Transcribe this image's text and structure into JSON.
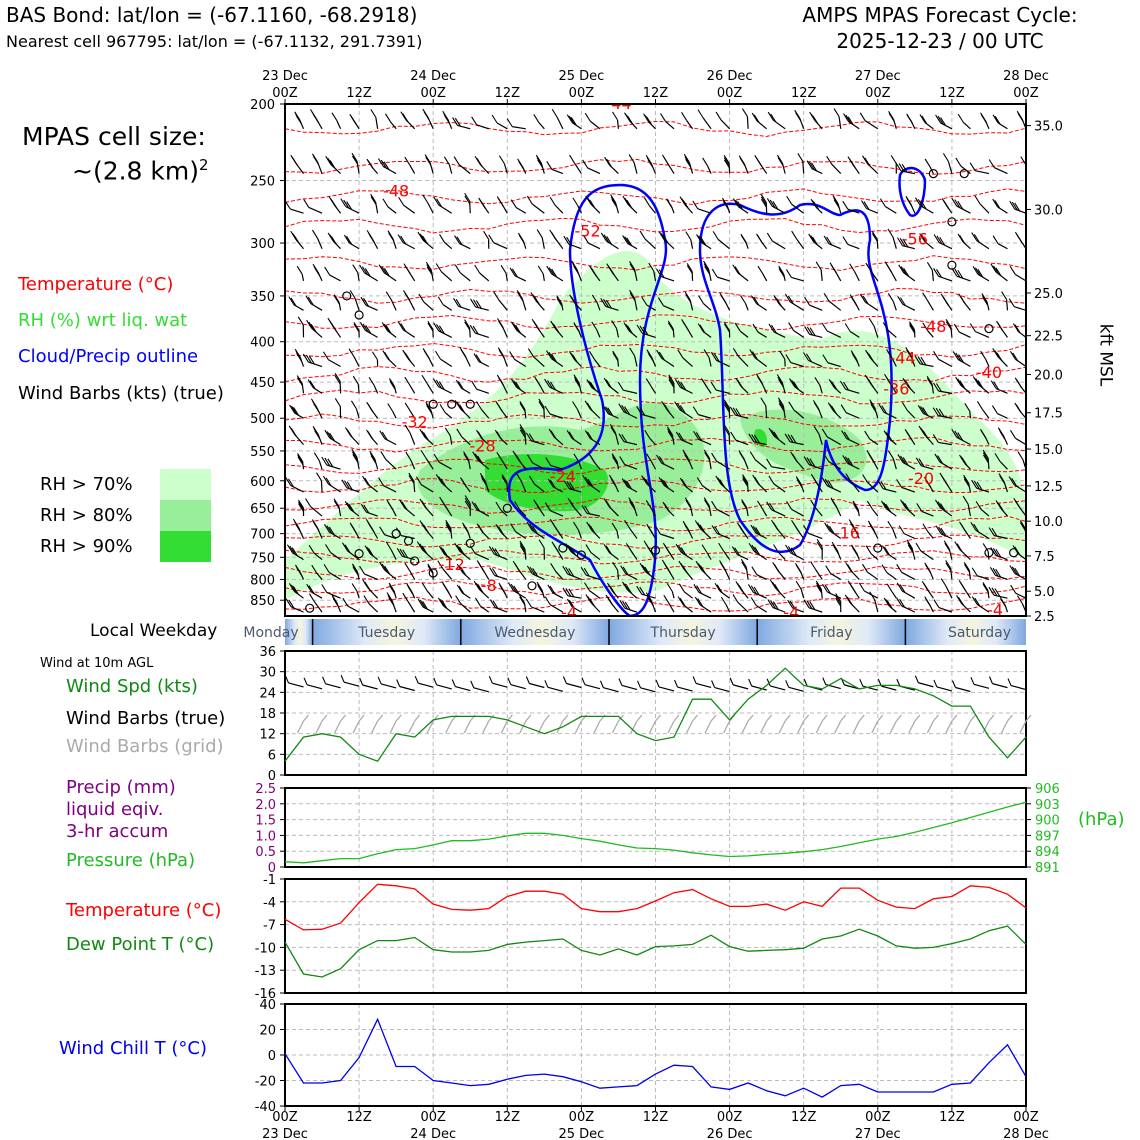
{
  "header": {
    "station_line": "BAS Bond: lat/lon = (-67.1160, -68.2918)",
    "cell_line": "Nearest cell 967795: lat/lon = (-67.1132, 291.7391)",
    "forecast_title": "AMPS MPAS Forecast Cycle:",
    "forecast_cycle": "2025-12-23 / 00 UTC"
  },
  "side": {
    "cell_size_label": "MPAS cell size:",
    "cell_size_value": "~(2.8 km)",
    "cell_size_exp": "2",
    "legend_temperature": "Temperature (°C)",
    "legend_rh": "RH (%) wrt liq. wat",
    "legend_cloud": "Cloud/Precip outline",
    "legend_barbs": "Wind Barbs (kts) (true)",
    "rh_70": "RH > 70%",
    "rh_80": "RH > 80%",
    "rh_90": "RH > 90%",
    "local_weekday_label": "Local Weekday",
    "wind10m_label": "Wind at 10m AGL",
    "wind_spd_label": "Wind Spd (kts)",
    "wind_barbs_true": "Wind Barbs (true)",
    "wind_barbs_grid": "Wind Barbs (grid)",
    "precip_line1": "Precip (mm)",
    "precip_line2": "liquid eqiv.",
    "precip_line3": "3-hr accum",
    "pressure_label": "Pressure (hPa)",
    "temp_label": "Temperature (°C)",
    "dew_label": "Dew Point T (°C)",
    "windchill_label": "Wind Chill T (°C)",
    "hpa_right": "(hPa)",
    "kft_label": "kft MSL"
  },
  "colors": {
    "temperature": "#ff0000",
    "rh": "#22dd22",
    "cloud": "#0000ff",
    "precip": "#800080",
    "pressure": "#22bb22",
    "dewpoint": "#118811",
    "windchill": "#0000ee",
    "rh70": "#ccffcc",
    "rh80": "#99ee99",
    "rh90": "#33dd33",
    "grid_barbs": "#aaaaaa"
  },
  "chart_data": {
    "type": "meteogram",
    "time_axis": {
      "hours": [
        0,
        12,
        24,
        36,
        48,
        60,
        72,
        84,
        96,
        108,
        120
      ],
      "top_labels": [
        "23 Dec\n00Z",
        "12Z",
        "24 Dec\n00Z",
        "12Z",
        "25 Dec\n00Z",
        "12Z",
        "26 Dec\n00Z",
        "12Z",
        "27 Dec\n00Z",
        "12Z",
        "28 Dec\n00Z"
      ],
      "bottom_labels": [
        "00Z\n23 Dec",
        "12Z",
        "00Z\n24 Dec",
        "12Z",
        "00Z\n25 Dec",
        "12Z",
        "00Z\n26 Dec",
        "12Z",
        "00Z\n27 Dec",
        "12Z",
        "00Z\n28 Dec"
      ]
    },
    "weekdays": [
      "Monday",
      "Tuesday",
      "Wednesday",
      "Thursday",
      "Friday",
      "Saturday"
    ],
    "upper_air": {
      "pressure_ticks": [
        200,
        250,
        300,
        350,
        400,
        450,
        500,
        550,
        600,
        650,
        700,
        750,
        800,
        850
      ],
      "ylim_hpa": [
        890,
        200
      ],
      "kft_ticks": [
        {
          "label": "35.0",
          "p": 213
        },
        {
          "label": "30.0",
          "p": 272
        },
        {
          "label": "25.0",
          "p": 347
        },
        {
          "label": "22.5",
          "p": 393
        },
        {
          "label": "20.0",
          "p": 440
        },
        {
          "label": "17.5",
          "p": 492
        },
        {
          "label": "15.0",
          "p": 547
        },
        {
          "label": "12.5",
          "p": 609
        },
        {
          "label": "10.0",
          "p": 675
        },
        {
          "label": "7.5",
          "p": 747
        },
        {
          "label": "5.0",
          "p": 828
        },
        {
          "label": "2.5",
          "p": 890
        }
      ],
      "temperature_labels": [
        {
          "t": "-44",
          "h": 54,
          "p": 200
        },
        {
          "t": "-48",
          "h": 18,
          "p": 258
        },
        {
          "t": "-52",
          "h": 49,
          "p": 290
        },
        {
          "t": "-56",
          "h": 102,
          "p": 297
        },
        {
          "t": "-48",
          "h": 105,
          "p": 383
        },
        {
          "t": "-44",
          "h": 100,
          "p": 420
        },
        {
          "t": "-40",
          "h": 114,
          "p": 438
        },
        {
          "t": "-36",
          "h": 99,
          "p": 460
        },
        {
          "t": "-32",
          "h": 21,
          "p": 506
        },
        {
          "t": "-28",
          "h": 32,
          "p": 543
        },
        {
          "t": "-24",
          "h": 45,
          "p": 593
        },
        {
          "t": "-20",
          "h": 103,
          "p": 597
        },
        {
          "t": "-16",
          "h": 91,
          "p": 700
        },
        {
          "t": "-12",
          "h": 27,
          "p": 767
        },
        {
          "t": "-8",
          "h": 33,
          "p": 815
        },
        {
          "t": "-4",
          "h": 46,
          "p": 882
        },
        {
          "t": "-4",
          "h": 82,
          "p": 882
        },
        {
          "t": "-4",
          "h": 115,
          "p": 876
        }
      ]
    },
    "wind10m": {
      "ylim": [
        0,
        36
      ],
      "yticks": [
        0,
        6,
        12,
        18,
        24,
        30,
        36
      ],
      "hours": [
        0,
        3,
        6,
        9,
        12,
        15,
        18,
        21,
        24,
        27,
        30,
        33,
        36,
        39,
        42,
        45,
        48,
        51,
        54,
        57,
        60,
        63,
        66,
        69,
        72,
        75,
        78,
        81,
        84,
        87,
        90,
        93,
        96,
        99,
        102,
        105,
        108,
        111,
        114,
        117,
        120
      ],
      "speed_kts": [
        4,
        11,
        12,
        11,
        6,
        4,
        12,
        11,
        16,
        17,
        17,
        17,
        16,
        14,
        12,
        14,
        17,
        17,
        17,
        12,
        10,
        11,
        22,
        22,
        16,
        22,
        26,
        31,
        26,
        25,
        28,
        25,
        26,
        26,
        25,
        23,
        20,
        20,
        11,
        5,
        11
      ]
    },
    "precip_pressure": {
      "precip_ylim": [
        0,
        2.5
      ],
      "precip_ticks": [
        "2.5",
        "2.0",
        "1.5",
        "1.0",
        "0.5",
        "0"
      ],
      "precip_mm": [],
      "pressure_ylim": [
        891,
        906
      ],
      "pressure_ticks": [
        906,
        903,
        900,
        897,
        894,
        891
      ],
      "hours": [
        0,
        3,
        6,
        9,
        12,
        15,
        18,
        21,
        24,
        27,
        30,
        33,
        36,
        39,
        42,
        45,
        48,
        51,
        54,
        57,
        60,
        63,
        66,
        69,
        72,
        75,
        78,
        81,
        84,
        87,
        90,
        93,
        96,
        99,
        102,
        105,
        108,
        111,
        114,
        117,
        120
      ],
      "pressure_hpa": [
        892.0,
        891.8,
        892.2,
        892.6,
        892.6,
        893.5,
        894.3,
        894.5,
        895.2,
        896.0,
        896.0,
        896.3,
        896.9,
        897.4,
        897.4,
        897.0,
        896.4,
        895.9,
        895.2,
        894.6,
        894.5,
        894.2,
        893.7,
        893.3,
        893.0,
        893.1,
        893.4,
        893.6,
        893.9,
        894.3,
        894.9,
        895.6,
        896.3,
        896.8,
        897.6,
        898.5,
        899.4,
        900.4,
        901.4,
        902.4,
        903.3
      ]
    },
    "temperature": {
      "ylim": [
        -16,
        -1
      ],
      "yticks": [
        -1,
        -4,
        -7,
        -10,
        -13,
        -16
      ],
      "hours": [
        0,
        3,
        6,
        9,
        12,
        15,
        18,
        21,
        24,
        27,
        30,
        33,
        36,
        39,
        42,
        45,
        48,
        51,
        54,
        57,
        60,
        63,
        66,
        69,
        72,
        75,
        78,
        81,
        84,
        87,
        90,
        93,
        96,
        99,
        102,
        105,
        108,
        111,
        114,
        117,
        120
      ],
      "temp_c": [
        -6.3,
        -7.7,
        -7.6,
        -6.8,
        -4.1,
        -1.7,
        -1.9,
        -2.3,
        -4.3,
        -5.0,
        -5.1,
        -4.9,
        -3.3,
        -2.6,
        -2.6,
        -3.0,
        -4.9,
        -5.3,
        -5.3,
        -4.9,
        -3.9,
        -2.8,
        -2.4,
        -3.6,
        -4.6,
        -4.6,
        -4.3,
        -5.1,
        -4.0,
        -4.6,
        -2.2,
        -2.2,
        -3.8,
        -4.7,
        -4.9,
        -3.6,
        -3.3,
        -1.9,
        -2.1,
        -3.0,
        -4.8
      ],
      "dewpoint_c": [
        -9.3,
        -13.5,
        -13.9,
        -12.8,
        -10.3,
        -9.1,
        -9.1,
        -8.7,
        -10.3,
        -10.6,
        -10.6,
        -10.4,
        -9.6,
        -9.3,
        -9.1,
        -8.9,
        -10.4,
        -11.0,
        -10.2,
        -11.0,
        -9.9,
        -9.8,
        -9.6,
        -8.4,
        -9.9,
        -10.5,
        -10.4,
        -10.3,
        -10.1,
        -8.9,
        -8.5,
        -7.6,
        -8.5,
        -9.8,
        -10.1,
        -10.0,
        -9.5,
        -8.9,
        -7.8,
        -7.2,
        -9.6
      ]
    },
    "windchill": {
      "ylim": [
        -40,
        40
      ],
      "yticks": [
        40,
        20,
        0,
        -20,
        -40
      ],
      "hours": [
        0,
        3,
        6,
        9,
        12,
        15,
        18,
        21,
        24,
        27,
        30,
        33,
        36,
        39,
        42,
        45,
        48,
        51,
        54,
        57,
        60,
        63,
        66,
        69,
        72,
        75,
        78,
        81,
        84,
        87,
        90,
        93,
        96,
        99,
        102,
        105,
        108,
        111,
        114,
        117,
        120
      ],
      "windchill_c": [
        1,
        -22,
        -22,
        -20,
        -2,
        28,
        -9,
        -9,
        -20,
        -22,
        -24,
        -23,
        -19,
        -16,
        -15,
        -17,
        -21,
        -26,
        -25,
        -24,
        -15,
        -8,
        -9,
        -25,
        -27,
        -22,
        -28,
        -32,
        -26,
        -33,
        -24,
        -23,
        -29,
        -29,
        -29,
        -29,
        -23,
        -22,
        -6,
        8,
        -17
      ]
    }
  }
}
